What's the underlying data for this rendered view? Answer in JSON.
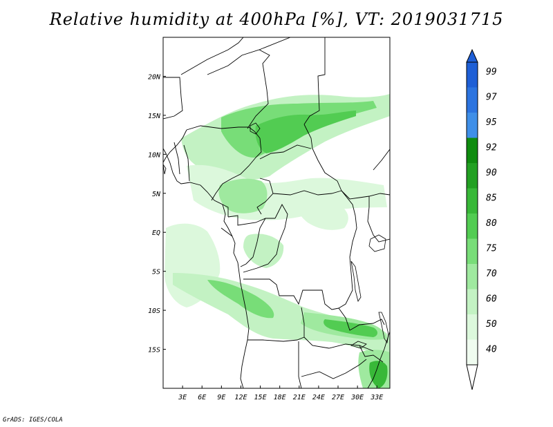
{
  "title": "Relative humidity at 400hPa [%], VT: 2019031715",
  "credit": "GrADS: IGES/COLA",
  "map": {
    "lon_range": [
      0,
      35
    ],
    "lat_range": [
      -20,
      25
    ],
    "lon_ticks": [
      "3E",
      "6E",
      "9E",
      "12E",
      "15E",
      "18E",
      "21E",
      "24E",
      "27E",
      "30E",
      "33E"
    ],
    "lat_ticks": [
      "20N",
      "15N",
      "10N",
      "5N",
      "EQ",
      "5S",
      "10S",
      "15S"
    ],
    "humidity_areas": [
      {
        "name": "sahel-band",
        "level": 70
      },
      {
        "name": "sahel-core",
        "level": 85
      },
      {
        "name": "cameroon-chad",
        "level": 60
      },
      {
        "name": "gulf-guinea",
        "level": 50
      },
      {
        "name": "angola-band",
        "level": 75
      },
      {
        "name": "zambia-band",
        "level": 80
      },
      {
        "name": "mozambique",
        "level": 90
      }
    ]
  },
  "colorbar": {
    "levels": [
      "99",
      "97",
      "95",
      "92",
      "90",
      "85",
      "80",
      "75",
      "70",
      "60",
      "50",
      "40"
    ],
    "colors": [
      "#1e5fd6",
      "#2c74e0",
      "#3f8fe8",
      "#0f8c0f",
      "#22a022",
      "#38b838",
      "#52cc52",
      "#78dd78",
      "#9fe99f",
      "#c3f2c3",
      "#dcf8dc",
      "#f0fcf0"
    ]
  }
}
